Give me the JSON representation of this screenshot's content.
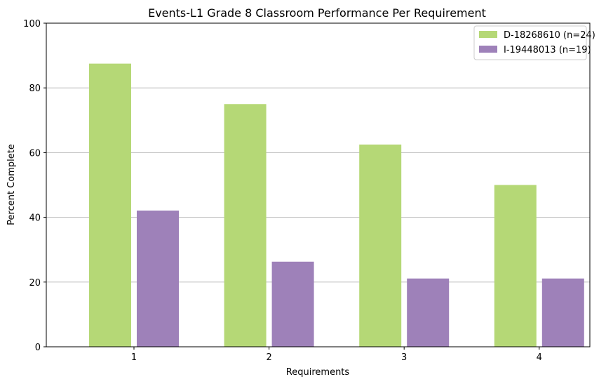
{
  "chart_data": {
    "type": "bar",
    "title": "Events-L1 Grade 8 Classroom Performance Per Requirement",
    "xlabel": "Requirements",
    "ylabel": "Percent Complete",
    "categories": [
      "1",
      "2",
      "3",
      "4"
    ],
    "ylim": [
      0,
      100
    ],
    "yticks": [
      "0",
      "20",
      "40",
      "60",
      "80",
      "100"
    ],
    "grid": "horizontal",
    "legend_position": "top-right",
    "series": [
      {
        "name": "D-18268610 (n=24)",
        "color": "#b5d876",
        "values": [
          87.5,
          75.0,
          62.5,
          50.0
        ]
      },
      {
        "name": "I-19448013 (n=19)",
        "color": "#9e81b9",
        "values": [
          42.1,
          26.3,
          21.1,
          21.1
        ]
      }
    ]
  }
}
